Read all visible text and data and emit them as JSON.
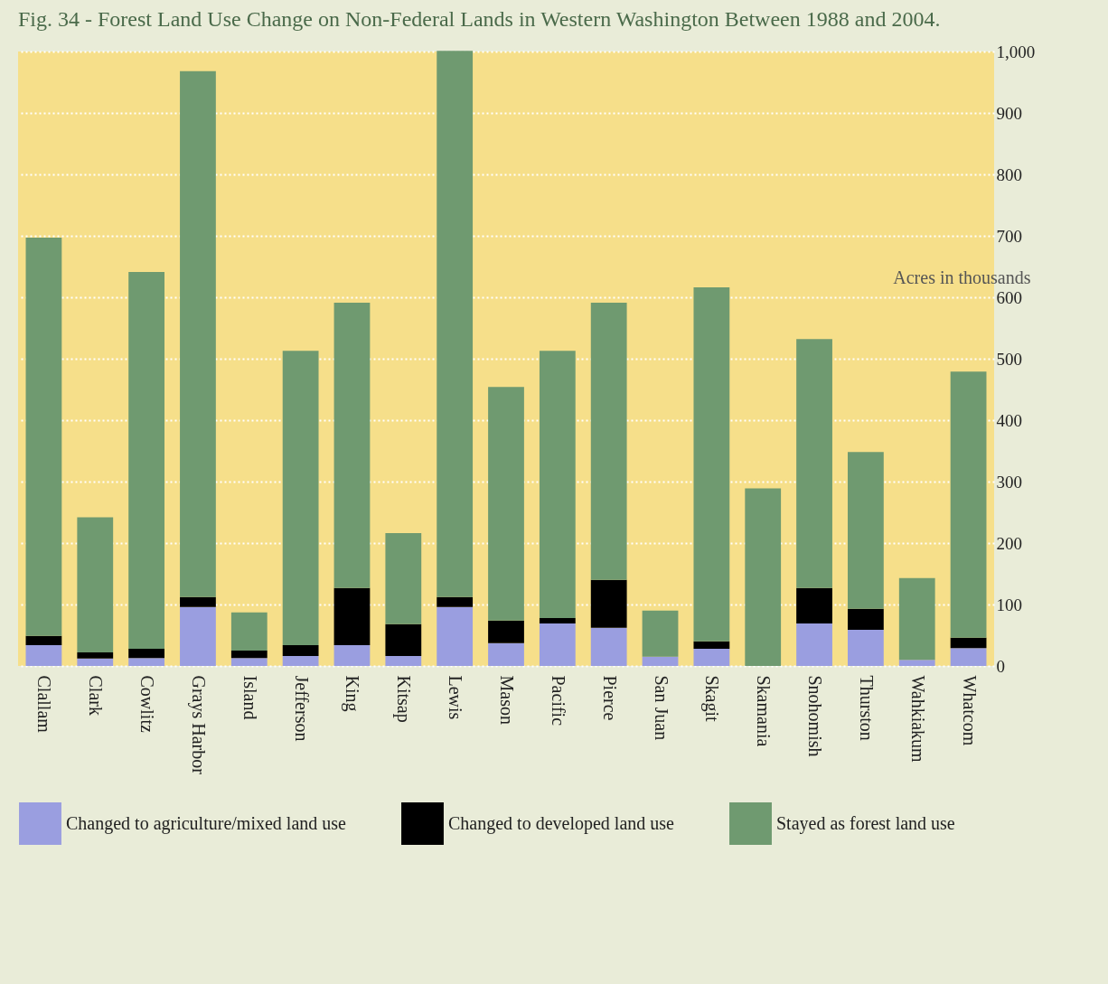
{
  "chart_data": {
    "type": "bar",
    "stacked": true,
    "title": "Fig. 34 - Forest Land Use Change on Non-Federal Lands in Western Washington Between 1988 and 2004.",
    "ylabel": "Acres in thousands",
    "categories": [
      "Clallam",
      "Clark",
      "Cowlitz",
      "Grays Harbor",
      "Island",
      "Jefferson",
      "King",
      "Kitsap",
      "Lewis",
      "Mason",
      "Pacific",
      "Pierce",
      "San Juan",
      "Skagit",
      "Skamania",
      "Snohomish",
      "Thurston",
      "Wahkiakum",
      "Whatcom"
    ],
    "series": [
      {
        "name": "Changed to agriculture/mixed land use",
        "color": "#9a9ee0",
        "values": [
          34,
          12,
          13,
          96,
          13,
          16,
          34,
          16,
          96,
          37,
          69,
          62,
          15,
          28,
          0,
          69,
          59,
          10,
          29
        ]
      },
      {
        "name": "Changed to developed land use",
        "color": "#000000",
        "values": [
          15,
          10,
          15,
          16,
          12,
          18,
          93,
          52,
          16,
          37,
          9,
          78,
          0,
          12,
          0,
          58,
          34,
          0,
          17
        ]
      },
      {
        "name": "Stayed as forest land use",
        "color": "#6f9a70",
        "values": [
          648,
          220,
          613,
          856,
          62,
          479,
          464,
          148,
          889,
          380,
          435,
          451,
          75,
          576,
          289,
          405,
          255,
          133,
          433
        ]
      }
    ],
    "ylim": [
      0,
      1000
    ],
    "yticks": [
      0,
      100,
      200,
      300,
      400,
      500,
      600,
      700,
      800,
      900,
      {
        "value": 1000,
        "label": "1,000"
      }
    ],
    "grid": "y",
    "legend": "bottom"
  }
}
